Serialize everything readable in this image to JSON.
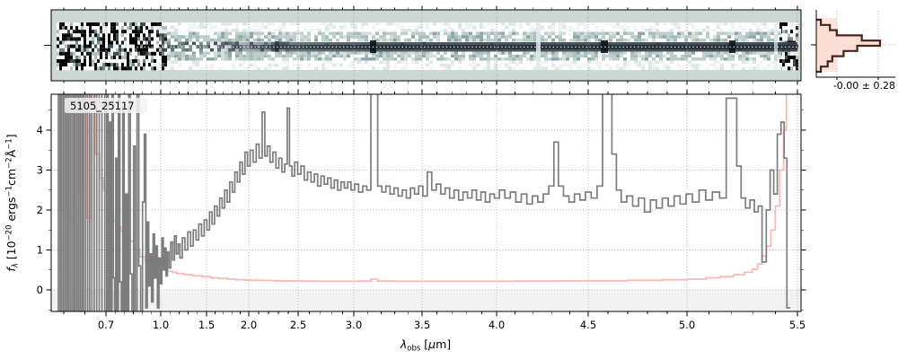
{
  "figure": {
    "background": "#ffffff",
    "object_label": "5105_25117",
    "hist_stats": "-0.00 ± 0.28"
  },
  "colors": {
    "spec2d_background": "#cbd8d4",
    "trace_dark": "#37434d",
    "trace_core": "#232d35",
    "flux_line": "#7d7d7d",
    "error_line": "#f5b9b7",
    "hist_outline": "#46221a",
    "hist_fill": "#f9dcd2",
    "hist_band": "#fbe1d8",
    "grid_line": "#b5b5b5",
    "grid_line_2d": "#9fa8a6",
    "below_zero_shade": "#f2f2f2",
    "spine": "#000000",
    "label_box": "#f2f2f2"
  },
  "main": {
    "label": "5105_25117",
    "xlabel": {
      "lambda": "λ",
      "sub": "obs",
      "br1": " [",
      "mu": "μ",
      "br2": "m]"
    },
    "ylabel": {
      "f": "f",
      "lambda": "λ",
      "p1": " [10",
      "e1": "−20",
      "p2": " ergs",
      "e2": "−1",
      "p3": "cm",
      "e3": "−2",
      "p4": "Å",
      "e4": "−1",
      "p5": "]"
    }
  },
  "hist": {
    "stats": "-0.00 ± 0.28"
  },
  "chart_data": [
    {
      "type": "line",
      "title": "5105_25117",
      "xlabel": "lambda_obs [um]",
      "ylabel": "f_lambda [10^-20 ergs^-1 cm^-2 A^-1]",
      "xlim": [
        0.57,
        5.52
      ],
      "ylim": [
        -0.54,
        4.9
      ],
      "x_scale": "non-linear (compressed 1-2 um, stretched ends)",
      "grid": "dotted",
      "x_ticks": {
        "values": [
          0.7,
          1.0,
          1.5,
          2.0,
          2.5,
          3.0,
          3.5,
          4.0,
          4.5,
          5.0,
          5.5
        ],
        "labels": [
          "0.7",
          "1.0",
          "1.5",
          "2.0",
          "2.5",
          "3.0",
          "3.5",
          "4.0",
          "4.5",
          "5.0",
          "5.5"
        ]
      },
      "y_ticks": {
        "values": [
          0,
          1,
          2,
          3,
          4
        ],
        "labels": [
          "0",
          "1",
          "2",
          "3",
          "4"
        ]
      },
      "series": [
        {
          "name": "flux",
          "color": "#7d7d7d",
          "x": [
            0.585,
            0.589,
            0.593,
            0.597,
            0.601,
            0.605,
            0.609,
            0.613,
            0.617,
            0.621,
            0.625,
            0.629,
            0.633,
            0.637,
            0.641,
            0.645,
            0.649,
            0.654,
            0.659,
            0.664,
            0.669,
            0.675,
            0.681,
            0.687,
            0.694,
            0.701,
            0.708,
            0.716,
            0.724,
            0.73,
            0.737,
            0.744,
            0.75,
            0.757,
            0.764,
            0.772,
            0.78,
            0.788,
            0.796,
            0.804,
            0.812,
            0.82,
            0.829,
            0.838,
            0.847,
            0.856,
            0.865,
            0.875,
            0.885,
            0.895,
            0.905,
            0.915,
            0.922,
            0.93,
            0.938,
            0.946,
            0.954,
            0.962,
            0.97,
            0.978,
            0.986,
            0.994,
            1.005,
            1.02,
            1.035,
            1.05,
            1.065,
            1.08,
            1.1,
            1.12,
            1.14,
            1.16,
            1.18,
            1.2,
            1.22,
            1.25,
            1.28,
            1.31,
            1.34,
            1.37,
            1.4,
            1.43,
            1.46,
            1.49,
            1.52,
            1.55,
            1.58,
            1.61,
            1.64,
            1.67,
            1.7,
            1.73,
            1.76,
            1.79,
            1.82,
            1.85,
            1.88,
            1.91,
            1.94,
            1.97,
            2.0,
            2.03,
            2.06,
            2.09,
            2.12,
            2.15,
            2.175,
            2.2,
            2.23,
            2.26,
            2.29,
            2.32,
            2.35,
            2.38,
            2.4,
            2.425,
            2.45,
            2.48,
            2.51,
            2.54,
            2.57,
            2.6,
            2.63,
            2.66,
            2.69,
            2.72,
            2.75,
            2.78,
            2.81,
            2.84,
            2.87,
            2.9,
            2.93,
            2.96,
            2.99,
            3.02,
            3.05,
            3.08,
            3.11,
            3.14,
            3.16,
            3.19,
            3.22,
            3.25,
            3.28,
            3.31,
            3.34,
            3.37,
            3.4,
            3.43,
            3.46,
            3.49,
            3.52,
            3.55,
            3.58,
            3.61,
            3.64,
            3.67,
            3.7,
            3.73,
            3.76,
            3.79,
            3.82,
            3.85,
            3.88,
            3.91,
            3.94,
            3.97,
            4.0,
            4.03,
            4.06,
            4.09,
            4.12,
            4.15,
            4.18,
            4.21,
            4.24,
            4.27,
            4.3,
            4.325,
            4.35,
            4.38,
            4.41,
            4.44,
            4.47,
            4.5,
            4.53,
            4.56,
            4.585,
            4.61,
            4.63,
            4.655,
            4.68,
            4.71,
            4.74,
            4.77,
            4.8,
            4.83,
            4.86,
            4.89,
            4.92,
            4.95,
            4.98,
            5.01,
            5.04,
            5.07,
            5.1,
            5.13,
            5.165,
            5.19,
            5.215,
            5.235,
            5.255,
            5.275,
            5.295,
            5.315,
            5.33,
            5.35,
            5.368,
            5.385,
            5.4,
            5.418,
            5.433,
            5.447,
            5.458,
            5.468
          ],
          "y": [
            5,
            -0.6,
            5,
            -0.6,
            5,
            -0.6,
            5,
            -0.6,
            5,
            -0.6,
            5,
            -0.6,
            5,
            -0.6,
            5,
            -0.6,
            5,
            -0.6,
            5,
            -0.6,
            5,
            -0.6,
            5,
            -0.6,
            5,
            -0.6,
            5,
            -0.6,
            4.2,
            -0.6,
            5,
            0.3,
            -0.6,
            3.3,
            -0.6,
            5,
            0.2,
            -0.6,
            4.6,
            -0.6,
            2.4,
            -0.6,
            5,
            0.4,
            -0.6,
            3.6,
            -0.6,
            5,
            0.6,
            -0.6,
            2.2,
            3.9,
            -0.45,
            1.7,
            0.1,
            0.9,
            -0.3,
            1.4,
            0.3,
            1.1,
            -0.45,
            0.8,
            0.15,
            1.3,
            0.5,
            1.05,
            0.35,
            0.95,
            0.55,
            1.2,
            0.75,
            1.35,
            0.9,
            1.15,
            0.8,
            1.3,
            1.0,
            1.45,
            1.1,
            1.5,
            1.25,
            1.65,
            1.35,
            1.75,
            1.5,
            1.95,
            1.65,
            2.1,
            1.85,
            2.3,
            2.05,
            2.5,
            2.2,
            2.7,
            2.45,
            2.95,
            2.7,
            3.2,
            2.9,
            3.45,
            3.1,
            3.5,
            3.2,
            3.65,
            3.3,
            4.45,
            3.35,
            3.6,
            3.2,
            3.45,
            3.05,
            3.3,
            2.95,
            3.15,
            4.55,
            3.1,
            2.85,
            3.2,
            2.9,
            3.1,
            2.75,
            2.95,
            2.7,
            2.9,
            2.6,
            2.85,
            2.65,
            2.8,
            2.55,
            2.75,
            2.5,
            2.7,
            2.55,
            2.7,
            2.5,
            2.65,
            2.45,
            2.6,
            2.5,
            4.95,
            4.95,
            2.6,
            2.45,
            2.6,
            2.4,
            2.55,
            2.35,
            2.5,
            2.3,
            2.55,
            2.4,
            2.6,
            2.35,
            2.95,
            2.5,
            2.65,
            2.4,
            2.55,
            2.3,
            2.5,
            2.25,
            2.45,
            2.3,
            2.5,
            2.25,
            2.45,
            2.2,
            2.4,
            2.3,
            2.5,
            2.3,
            2.45,
            2.2,
            2.4,
            2.15,
            2.35,
            2.2,
            2.4,
            2.6,
            3.7,
            2.6,
            2.35,
            2.2,
            2.4,
            2.25,
            2.45,
            2.3,
            2.6,
            4.95,
            4.95,
            3.4,
            2.5,
            2.2,
            2.35,
            2.1,
            2.3,
            1.95,
            2.25,
            2.05,
            2.3,
            2.1,
            2.35,
            2.15,
            2.4,
            2.2,
            2.5,
            2.25,
            2.45,
            2.3,
            4.8,
            4.8,
            3.1,
            2.3,
            2.05,
            2.25,
            1.95,
            2.1,
            0.7,
            2.0,
            3.0,
            2.4,
            3.9,
            4.2,
            3.3,
            -0.45,
            -0.45
          ]
        },
        {
          "name": "error",
          "color": "#f5b9b7",
          "x": [
            0.585,
            0.6,
            0.61,
            0.62,
            0.63,
            0.64,
            0.65,
            0.66,
            0.67,
            0.68,
            0.69,
            0.7,
            0.71,
            0.72,
            0.735,
            0.75,
            0.77,
            0.79,
            0.81,
            0.84,
            0.87,
            0.9,
            0.93,
            0.96,
            1.0,
            1.05,
            1.1,
            1.15,
            1.2,
            1.3,
            1.4,
            1.5,
            1.6,
            1.7,
            1.8,
            1.9,
            2.0,
            2.1,
            2.2,
            2.3,
            2.4,
            2.6,
            2.8,
            3.0,
            3.1,
            3.15,
            3.2,
            3.4,
            3.6,
            3.8,
            4.0,
            4.2,
            4.4,
            4.6,
            4.8,
            4.95,
            5.05,
            5.12,
            5.18,
            5.24,
            5.28,
            5.31,
            5.33,
            5.35,
            5.37,
            5.39,
            5.41,
            5.43,
            5.445,
            5.455,
            5.468
          ],
          "y": [
            5,
            2.0,
            5,
            1.7,
            5,
            2.4,
            5,
            1.8,
            5,
            3.4,
            2.8,
            2.5,
            2.2,
            2.0,
            1.85,
            1.7,
            1.58,
            1.47,
            1.4,
            1.22,
            1.02,
            0.83,
            0.73,
            0.66,
            0.58,
            0.52,
            0.47,
            0.44,
            0.41,
            0.38,
            0.35,
            0.33,
            0.3,
            0.285,
            0.27,
            0.255,
            0.245,
            0.24,
            0.235,
            0.23,
            0.225,
            0.22,
            0.215,
            0.215,
            0.22,
            0.27,
            0.22,
            0.215,
            0.215,
            0.215,
            0.215,
            0.22,
            0.225,
            0.23,
            0.24,
            0.255,
            0.27,
            0.3,
            0.33,
            0.38,
            0.44,
            0.52,
            0.65,
            0.85,
            1.1,
            1.5,
            2.1,
            3.0,
            4.0,
            5,
            5
          ]
        }
      ]
    },
    {
      "type": "histogram",
      "name": "residual-histogram",
      "orientation": "horizontal",
      "stats_label": "-0.00 ± 0.28",
      "counts_top_to_bottom": [
        2,
        6,
        9,
        20,
        28,
        18,
        12,
        7,
        5,
        2
      ]
    }
  ]
}
